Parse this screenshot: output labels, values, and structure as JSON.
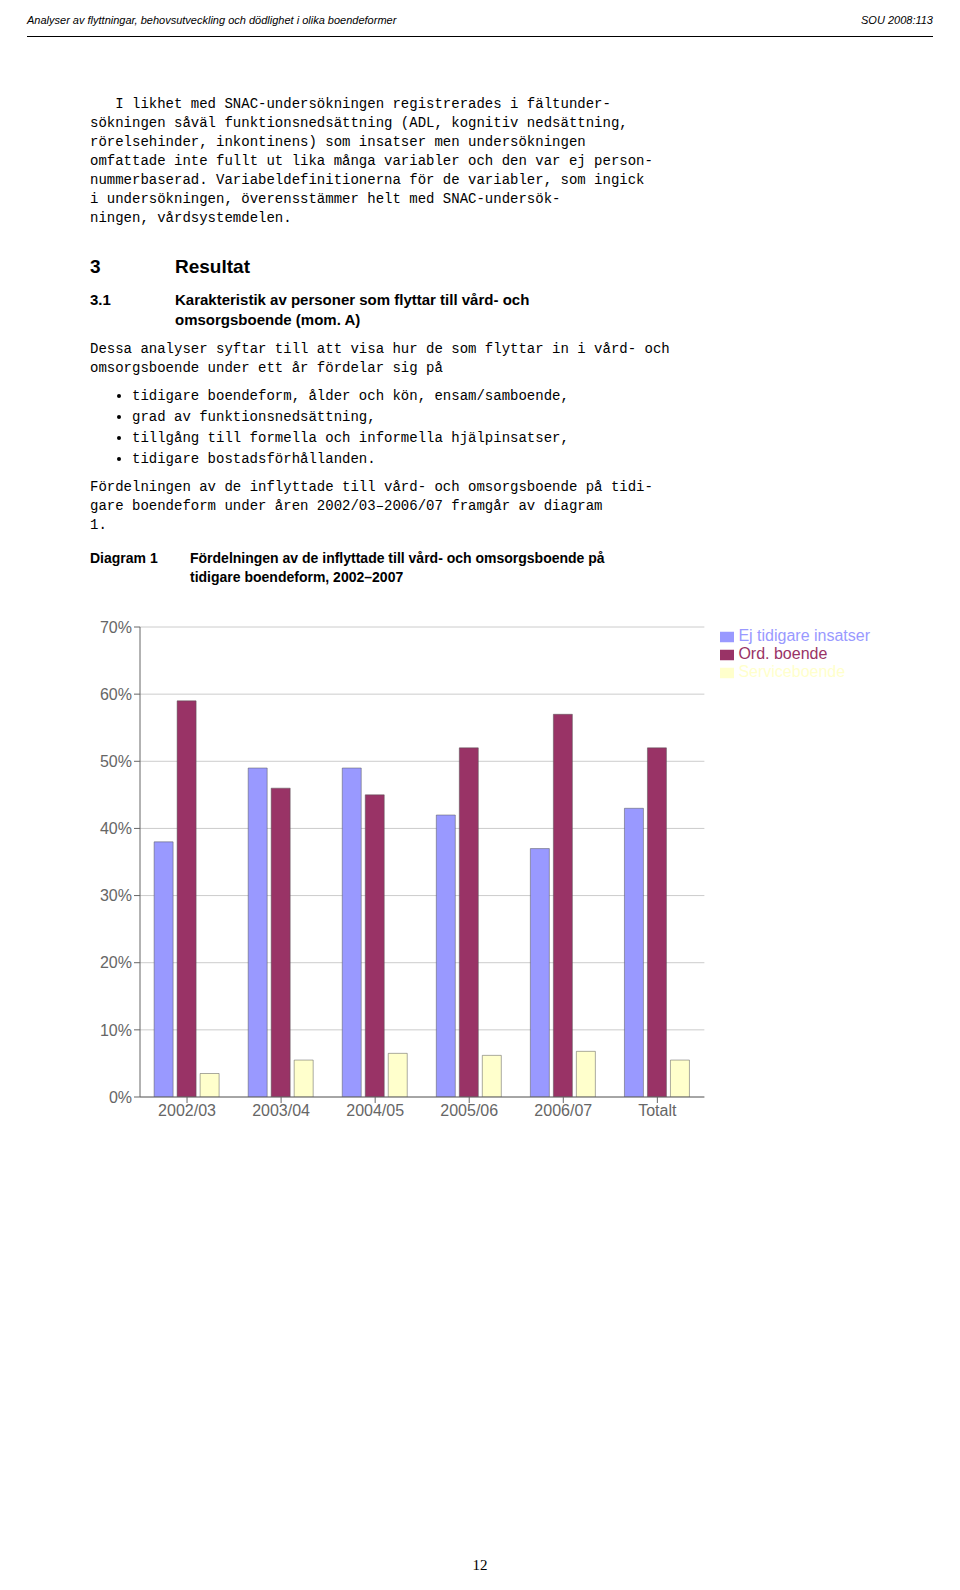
{
  "chart_data": {
    "type": "bar",
    "categories": [
      "2002/03",
      "2003/04",
      "2004/05",
      "2005/06",
      "2006/07",
      "Totalt"
    ],
    "series": [
      {
        "name": "Ej tidigare insatser",
        "color": "#9999FF",
        "values": [
          38,
          49,
          49,
          42,
          37,
          43
        ]
      },
      {
        "name": "Ord. boende",
        "color": "#993366",
        "values": [
          59,
          46,
          45,
          52,
          57,
          52
        ]
      },
      {
        "name": "Serviceboende",
        "color": "#FFFFCC",
        "values": [
          3.5,
          5.5,
          6.5,
          6.2,
          6.8,
          5.5
        ]
      }
    ],
    "ylim": [
      0,
      70
    ],
    "yticks": [
      {
        "value": 0,
        "label": "0%"
      },
      {
        "value": 10,
        "label": "10%"
      },
      {
        "value": 20,
        "label": "20%"
      },
      {
        "value": 30,
        "label": "30%"
      },
      {
        "value": 40,
        "label": "40%"
      },
      {
        "value": 50,
        "label": "50%"
      },
      {
        "value": 60,
        "label": "60%"
      },
      {
        "value": 70,
        "label": "70%"
      }
    ],
    "grid": true,
    "legend": "upper right",
    "annotations": [
      "Analyser av flyttningar, behovsutveckling och dödlighet i olika boendeformer",
      "SOU 2008:113",
      "I likhet med SNAC-undersökningen registrerades i fältunder-",
      "sökningen såväl funktionsnedsättning (ADL, kognitiv nedsättning,",
      "rörelsehinder, inkontinens) som insatser men undersökningen",
      "omfattade inte fullt ut lika många variabler och den var ej person-",
      "nummerbaserad. Variabeldefinitionerna för de variabler, som ingick",
      "i undersökningen, överensstämmer helt med SNAC-undersök-",
      "ningen, vårdsystemdelen.",
      "3",
      "Resultat",
      "3.1",
      "Karakteristik av personer som flyttar till vård- och",
      "omsorgsboende (mom. A)",
      "Dessa analyser syftar till att visa hur de som flyttar in i vård- och",
      "omsorgsboende under ett år fördelar sig på",
      "tidigare boendeform, ålder och kön, ensam/samboende,",
      "grad av funktionsnedsättning,",
      "tillgång till formella och informella hjälpinsatser,",
      "tidigare bostadsförhållanden.",
      "Fördelningen av de inflyttade till vård- och omsorgsboende på tidi-",
      "gare boendeform under åren 2002/03–2006/07 framgår av diagram",
      "1.",
      "Diagram 1",
      "Fördelningen av de inflyttade till vård- och omsorgsboende på",
      "tidigare boendeform, 2002–2007",
      "12"
    ]
  }
}
